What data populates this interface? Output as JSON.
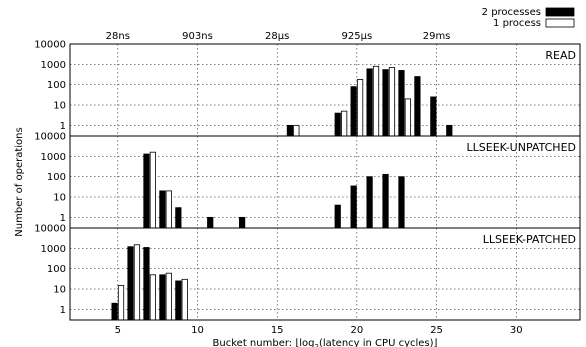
{
  "chart_data": {
    "type": "bar",
    "xlabel_prefix": "Bucket number: ",
    "xlabel_main": "log",
    "xlabel_sub": "2",
    "xlabel_suffix": "(latency in CPU cycles)",
    "ylabel": "Number of operations",
    "log_y": true,
    "grid": true,
    "legend_placement": "top-right, above plot",
    "xlim": [
      2,
      34
    ],
    "ylim": [
      0.3,
      10000
    ],
    "x_ticks": [
      5,
      10,
      15,
      20,
      25,
      30
    ],
    "y_ticks": [
      "1",
      "10",
      "100",
      "1000",
      "10000"
    ],
    "top_ticks": [
      {
        "x": 5,
        "label": "28ns"
      },
      {
        "x": 10,
        "label": "903ns"
      },
      {
        "x": 15,
        "label": "28µs"
      },
      {
        "x": 20,
        "label": "925µs"
      },
      {
        "x": 25,
        "label": "29ms"
      }
    ],
    "series": [
      {
        "name": "2 processes",
        "color": "#000000"
      },
      {
        "name": "1 process",
        "color": "#ffffff"
      }
    ],
    "panels": [
      {
        "label": "READ",
        "two_processes": [
          [
            16,
            1
          ],
          [
            19,
            4
          ],
          [
            20,
            80
          ],
          [
            21,
            600
          ],
          [
            22,
            550
          ],
          [
            23,
            500
          ],
          [
            24,
            250
          ],
          [
            25,
            25
          ],
          [
            26,
            1
          ]
        ],
        "one_process": [
          [
            16,
            1
          ],
          [
            19,
            5
          ],
          [
            20,
            180
          ],
          [
            21,
            800
          ],
          [
            22,
            700
          ],
          [
            23,
            20
          ]
        ]
      },
      {
        "label": "LLSEEK-UNPATCHED",
        "two_processes": [
          [
            7,
            1300
          ],
          [
            8,
            20
          ],
          [
            9,
            3
          ],
          [
            11,
            1
          ],
          [
            13,
            1
          ],
          [
            19,
            4
          ],
          [
            20,
            35
          ],
          [
            21,
            100
          ],
          [
            22,
            130
          ],
          [
            23,
            100
          ]
        ],
        "one_process": [
          [
            7,
            1600
          ],
          [
            8,
            20
          ]
        ]
      },
      {
        "label": "LLSEEK-PATCHED",
        "two_processes": [
          [
            5,
            2
          ],
          [
            6,
            1200
          ],
          [
            7,
            1100
          ],
          [
            8,
            50
          ],
          [
            9,
            25
          ]
        ],
        "one_process": [
          [
            5,
            15
          ],
          [
            6,
            1500
          ],
          [
            7,
            50
          ],
          [
            8,
            60
          ],
          [
            9,
            30
          ]
        ]
      }
    ]
  }
}
